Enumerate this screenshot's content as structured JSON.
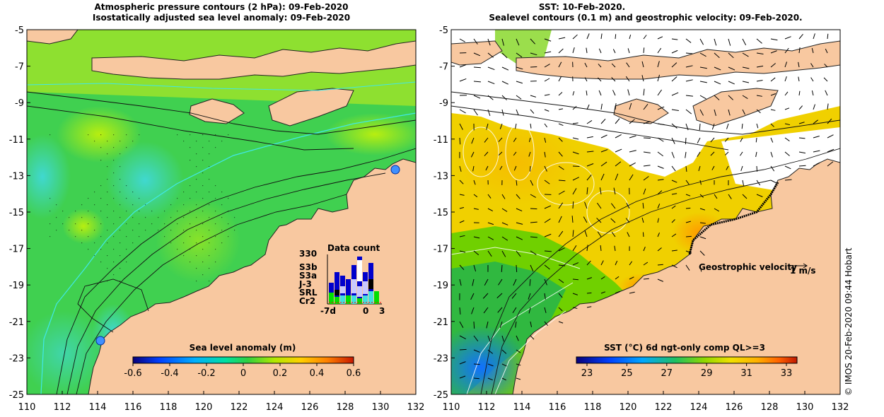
{
  "left_panel": {
    "title_line1": "Atmospheric pressure contours (2 hPa): 09-Feb-2020",
    "title_line2": "Isostatically adjusted sea level anomaly: 09-Feb-2020",
    "colorbar_label": "Sea level anomaly (m)",
    "colorbar_ticks": [
      "-0.6",
      "-0.4",
      "-0.2",
      "0",
      "0.2",
      "0.4",
      "0.6"
    ],
    "colorbar_colors": [
      "#08007a",
      "#0040ff",
      "#00b0ff",
      "#00e0a0",
      "#30d040",
      "#9ae000",
      "#e8f000",
      "#ffc800",
      "#ff8000",
      "#d02000"
    ],
    "inset": {
      "title": "Data count",
      "max_label": "330",
      "x_labels": [
        "-7d",
        "0",
        "3"
      ],
      "satellites": [
        {
          "name": "S3b",
          "color": "#0000cc"
        },
        {
          "name": "S3a",
          "color": "#c8c8ff"
        },
        {
          "name": "J-3",
          "color": "#000000"
        },
        {
          "name": "SRL",
          "color": "#40e0e0"
        },
        {
          "name": "Cr2",
          "color": "#00e000"
        }
      ]
    }
  },
  "right_panel": {
    "title_line1": "SST: 10-Feb-2020.",
    "title_line2": "Sealevel contours (0.1 m) and geostrophic velocity: 09-Feb-2020.",
    "colorbar_label": "SST (°C) 6d ngt-only comp QL>=3",
    "colorbar_ticks": [
      "23",
      "25",
      "27",
      "29",
      "31",
      "33"
    ],
    "colorbar_colors": [
      "#08007a",
      "#0040ff",
      "#00a0ff",
      "#00d0b0",
      "#30c040",
      "#90d800",
      "#e8e800",
      "#ffc800",
      "#ff8000",
      "#d02000"
    ],
    "velocity_label": "Geostrophic velocity",
    "velocity_scale": "1 m/s"
  },
  "axes": {
    "y_ticks": [
      "-5",
      "-7",
      "-9",
      "-11",
      "-13",
      "-15",
      "-17",
      "-19",
      "-21",
      "-23",
      "-25"
    ],
    "x_ticks": [
      "110",
      "112",
      "114",
      "116",
      "118",
      "120",
      "122",
      "124",
      "126",
      "128",
      "130",
      "132"
    ]
  },
  "credit": "© IMOS 20-Feb-2020 09:44 Hobart",
  "colors": {
    "land": "#f8c8a0",
    "sea_green": "#40d050",
    "sea_light": "#a0e820",
    "sea_cyan": "#30d8c0",
    "sst_yellow": "#f0d000",
    "sst_green": "#60d000"
  }
}
